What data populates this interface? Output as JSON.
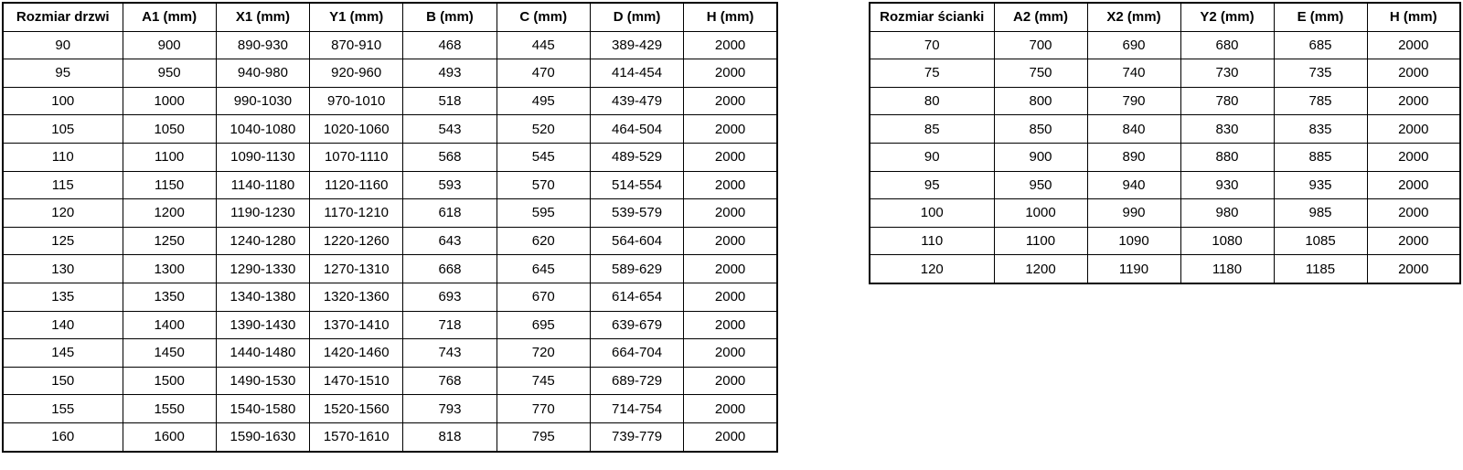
{
  "page": {
    "background_color": "#ffffff",
    "border_color": "#000000",
    "text_color": "#000000"
  },
  "door_table": {
    "headers": [
      "Rozmiar drzwi",
      "A1 (mm)",
      "X1 (mm)",
      "Y1 (mm)",
      "B (mm)",
      "C (mm)",
      "D (mm)",
      "H (mm)"
    ],
    "rows": [
      [
        "90",
        "900",
        "890-930",
        "870-910",
        "468",
        "445",
        "389-429",
        "2000"
      ],
      [
        "95",
        "950",
        "940-980",
        "920-960",
        "493",
        "470",
        "414-454",
        "2000"
      ],
      [
        "100",
        "1000",
        "990-1030",
        "970-1010",
        "518",
        "495",
        "439-479",
        "2000"
      ],
      [
        "105",
        "1050",
        "1040-1080",
        "1020-1060",
        "543",
        "520",
        "464-504",
        "2000"
      ],
      [
        "110",
        "1100",
        "1090-1130",
        "1070-1110",
        "568",
        "545",
        "489-529",
        "2000"
      ],
      [
        "115",
        "1150",
        "1140-1180",
        "1120-1160",
        "593",
        "570",
        "514-554",
        "2000"
      ],
      [
        "120",
        "1200",
        "1190-1230",
        "1170-1210",
        "618",
        "595",
        "539-579",
        "2000"
      ],
      [
        "125",
        "1250",
        "1240-1280",
        "1220-1260",
        "643",
        "620",
        "564-604",
        "2000"
      ],
      [
        "130",
        "1300",
        "1290-1330",
        "1270-1310",
        "668",
        "645",
        "589-629",
        "2000"
      ],
      [
        "135",
        "1350",
        "1340-1380",
        "1320-1360",
        "693",
        "670",
        "614-654",
        "2000"
      ],
      [
        "140",
        "1400",
        "1390-1430",
        "1370-1410",
        "718",
        "695",
        "639-679",
        "2000"
      ],
      [
        "145",
        "1450",
        "1440-1480",
        "1420-1460",
        "743",
        "720",
        "664-704",
        "2000"
      ],
      [
        "150",
        "1500",
        "1490-1530",
        "1470-1510",
        "768",
        "745",
        "689-729",
        "2000"
      ],
      [
        "155",
        "1550",
        "1540-1580",
        "1520-1560",
        "793",
        "770",
        "714-754",
        "2000"
      ],
      [
        "160",
        "1600",
        "1590-1630",
        "1570-1610",
        "818",
        "795",
        "739-779",
        "2000"
      ]
    ]
  },
  "wall_table": {
    "headers": [
      "Rozmiar ścianki",
      "A2 (mm)",
      "X2 (mm)",
      "Y2 (mm)",
      "E (mm)",
      "H (mm)"
    ],
    "rows": [
      [
        "70",
        "700",
        "690",
        "680",
        "685",
        "2000"
      ],
      [
        "75",
        "750",
        "740",
        "730",
        "735",
        "2000"
      ],
      [
        "80",
        "800",
        "790",
        "780",
        "785",
        "2000"
      ],
      [
        "85",
        "850",
        "840",
        "830",
        "835",
        "2000"
      ],
      [
        "90",
        "900",
        "890",
        "880",
        "885",
        "2000"
      ],
      [
        "95",
        "950",
        "940",
        "930",
        "935",
        "2000"
      ],
      [
        "100",
        "1000",
        "990",
        "980",
        "985",
        "2000"
      ],
      [
        "110",
        "1100",
        "1090",
        "1080",
        "1085",
        "2000"
      ],
      [
        "120",
        "1200",
        "1190",
        "1180",
        "1185",
        "2000"
      ]
    ]
  }
}
